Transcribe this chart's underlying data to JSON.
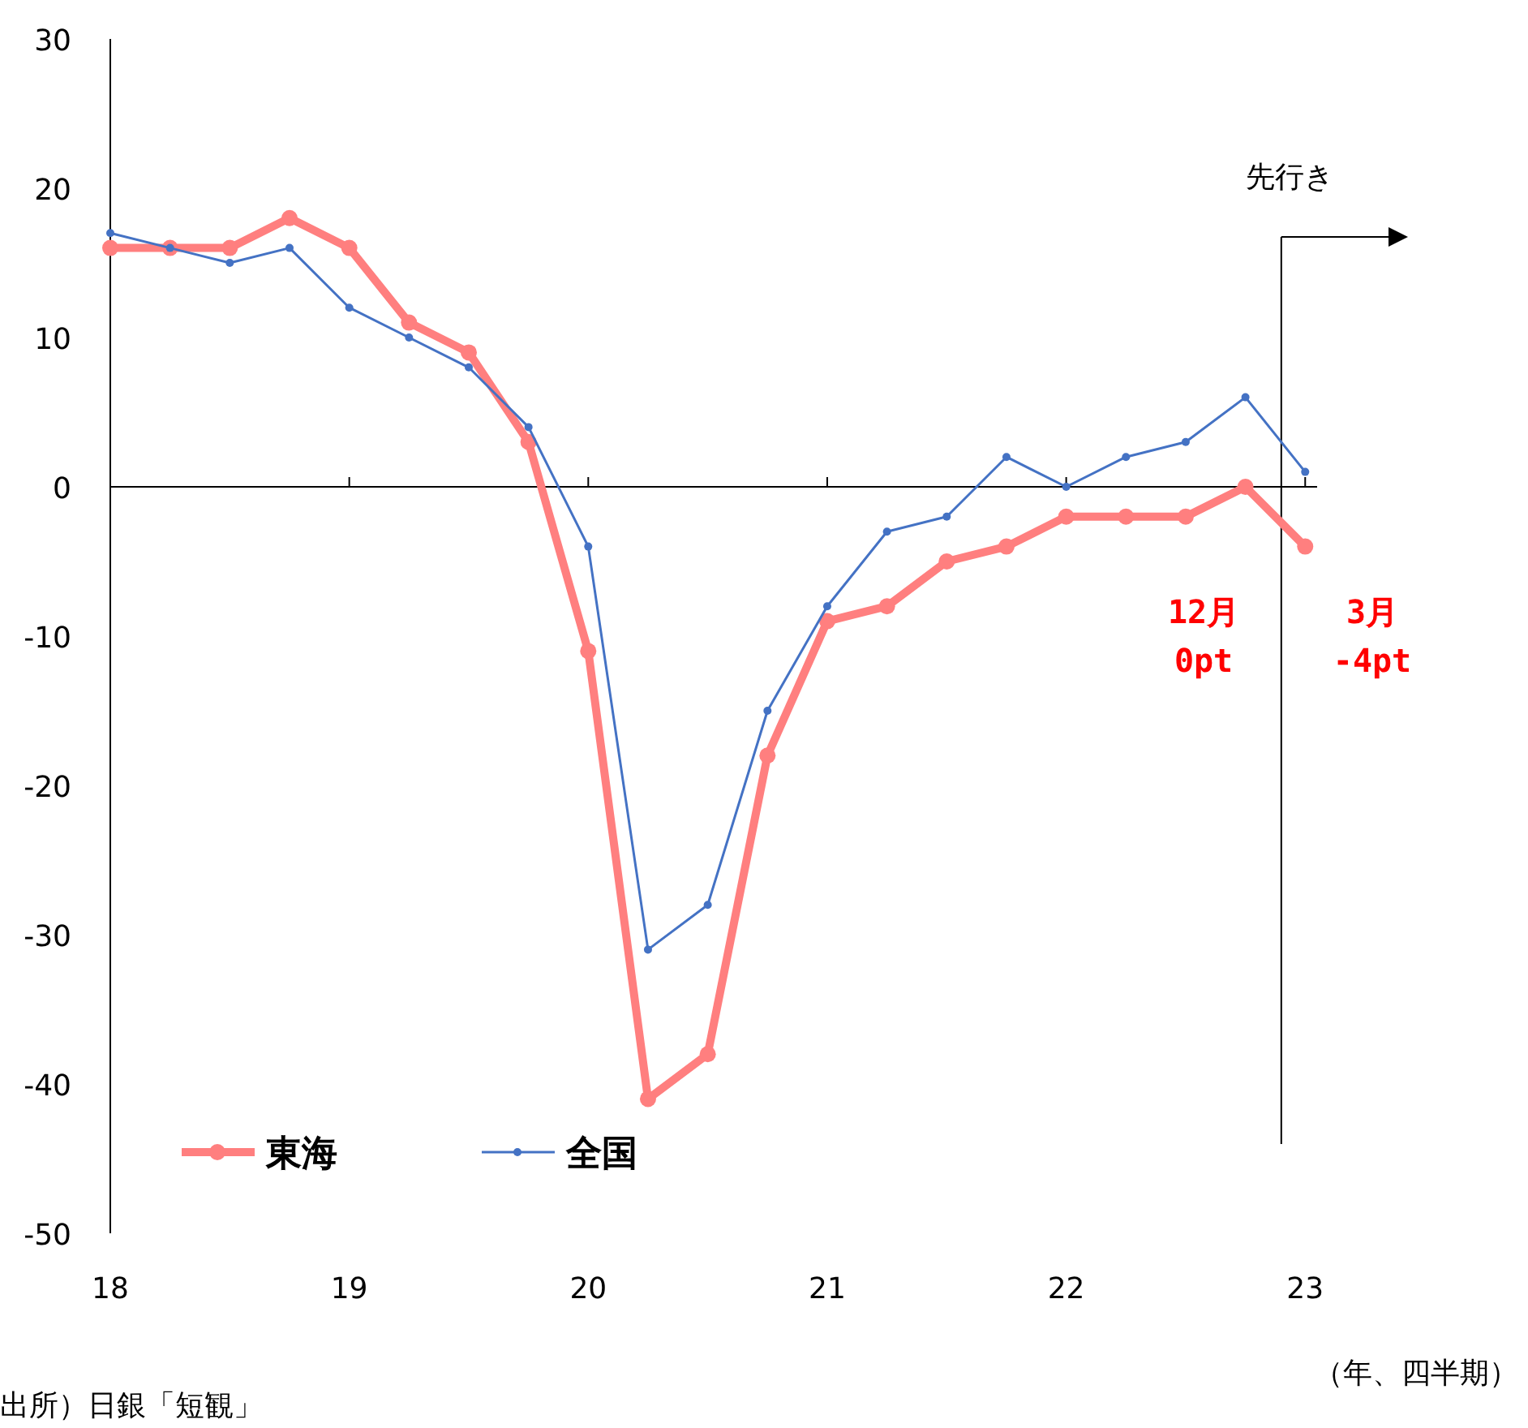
{
  "chart_data": {
    "type": "line",
    "xlabel": "（年、四半期）",
    "x": [
      18,
      18.25,
      18.5,
      18.75,
      19,
      19.25,
      19.5,
      19.75,
      20,
      20.25,
      20.5,
      20.75,
      21,
      21.25,
      21.5,
      21.75,
      22,
      22.25,
      22.5,
      22.75,
      23
    ],
    "series": [
      {
        "name": "東海",
        "color": "#ff7f7f",
        "values": [
          16,
          16,
          16,
          18,
          16,
          11,
          9,
          3,
          -11,
          -41,
          -38,
          -18,
          -9,
          -8,
          -5,
          -4,
          -2,
          -2,
          -2,
          0,
          -4
        ]
      },
      {
        "name": "全国",
        "color": "#4472c4",
        "values": [
          17,
          16,
          15,
          16,
          12,
          10,
          8,
          4,
          -4,
          -31,
          -28,
          -15,
          -8,
          -3,
          -2,
          2,
          0,
          2,
          3,
          6,
          1
        ]
      }
    ],
    "xlim": [
      18,
      23.05
    ],
    "xticks": [
      18,
      19,
      20,
      21,
      22,
      23
    ],
    "ylim": [
      -50,
      30
    ],
    "yticks": [
      -50,
      -40,
      -30,
      -20,
      -10,
      0,
      10,
      20,
      30
    ],
    "marker": "circle",
    "legend": "bottom left",
    "ref_lines": [
      {
        "axis": "x",
        "value": 22.9,
        "label": "先行き"
      }
    ],
    "annotations": [
      "12月\n0pt",
      "3月\n-4pt",
      "出所）日銀「短観」"
    ]
  }
}
